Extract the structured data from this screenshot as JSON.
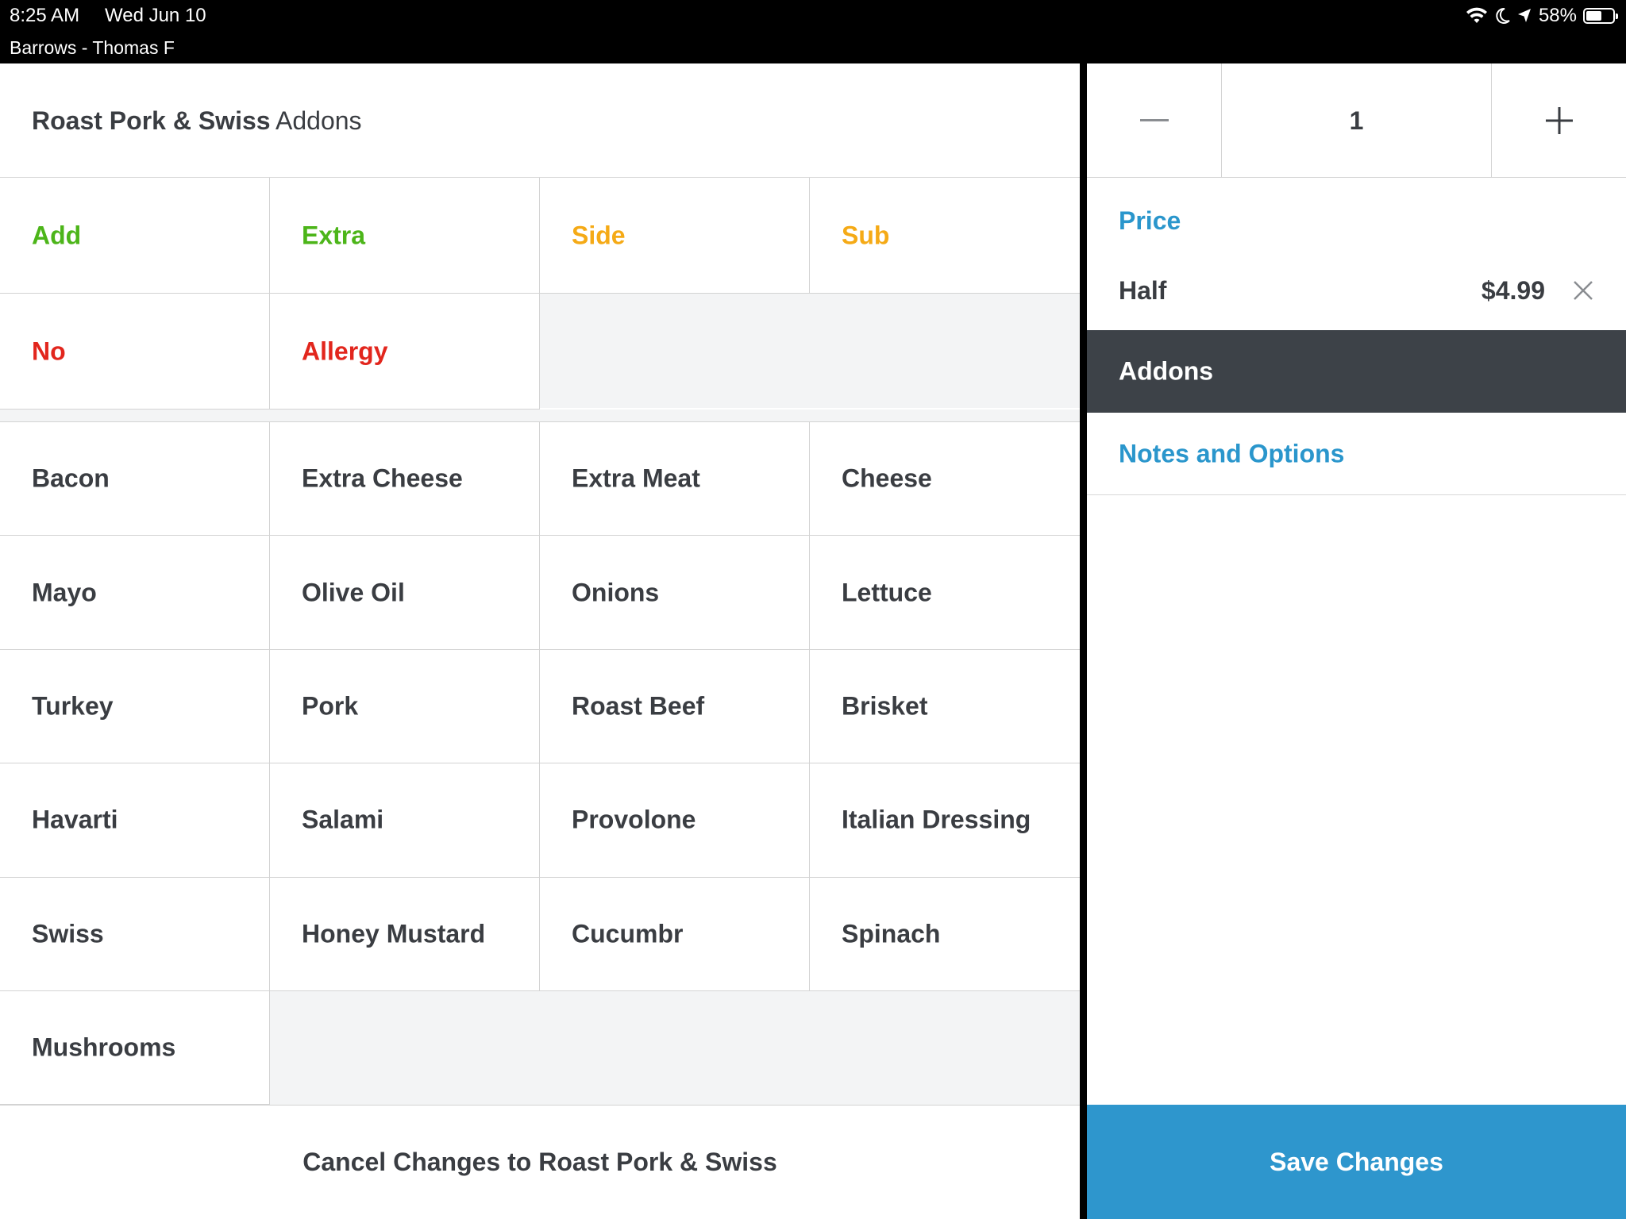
{
  "status_bar": {
    "time": "8:25 AM",
    "date": "Wed Jun 10",
    "subtitle": "Barrows - Thomas F",
    "battery": "58%",
    "battery_level": 0.58
  },
  "item": {
    "name": "Roast Pork & Swiss",
    "section": "Addons"
  },
  "modifier_types": [
    {
      "label": "Add",
      "color": "#4cb519"
    },
    {
      "label": "Extra",
      "color": "#4cb519"
    },
    {
      "label": "Side",
      "color": "#f5aa16"
    },
    {
      "label": "Sub",
      "color": "#f5aa16"
    },
    {
      "label": "No",
      "color": "#e2261d"
    },
    {
      "label": "Allergy",
      "color": "#e2261d"
    }
  ],
  "addons": [
    "Bacon",
    "Extra Cheese",
    "Extra Meat",
    "Cheese",
    "Mayo",
    "Olive Oil",
    "Onions",
    "Lettuce",
    "Turkey",
    "Pork",
    "Roast Beef",
    "Brisket",
    "Havarti",
    "Salami",
    "Provolone",
    "Italian Dressing",
    "Swiss",
    "Honey Mustard",
    "Cucumbr",
    "Spinach",
    "Mushrooms"
  ],
  "cancel_label": "Cancel Changes to Roast Pork & Swiss",
  "quantity": {
    "value": "1",
    "minus_icon": "minus-icon",
    "plus_icon": "plus-icon"
  },
  "details": {
    "price_label": "Price",
    "size_name": "Half",
    "size_price": "$4.99",
    "addons_label": "Addons",
    "notes_label": "Notes and Options"
  },
  "save_label": "Save Changes",
  "colors": {
    "accent_blue": "#2a96cc",
    "save_blue": "#2e96cd",
    "dark_row": "#3d4248"
  }
}
